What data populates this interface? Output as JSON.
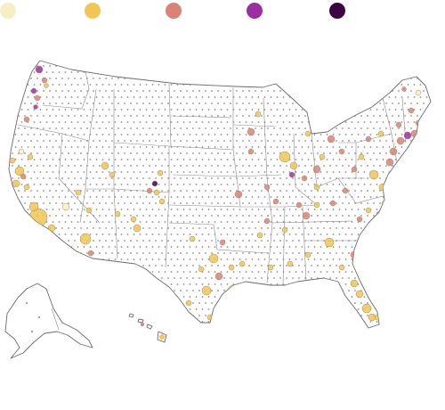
{
  "legend": {
    "categories": [
      {
        "color": "#f7efc4",
        "level": 1
      },
      {
        "color": "#f0c654",
        "level": 2
      },
      {
        "color": "#d98377",
        "level": 3
      },
      {
        "color": "#9b2fa2",
        "level": 4
      },
      {
        "color": "#3d0342",
        "level": 5
      }
    ]
  },
  "map": {
    "region_names": [
      "contiguous-us",
      "alaska",
      "hawaii"
    ],
    "marker_colors": {
      "gray": "#8c8c8c",
      "pale": "#f7efc4",
      "yellow": "#f0c654",
      "salmon": "#d98377",
      "magenta": "#9b2fa2",
      "dark-purple": "#3d0342"
    }
  }
}
